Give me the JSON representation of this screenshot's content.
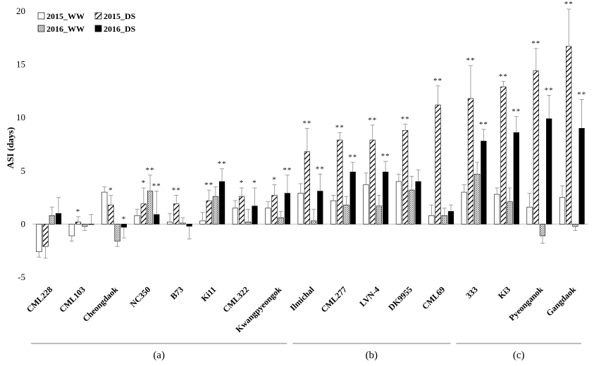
{
  "chart_data": {
    "type": "bar",
    "ylabel": "ASI (days)",
    "ylim": [
      -5,
      20
    ],
    "yticks": [
      -5,
      0,
      5,
      10,
      15,
      20
    ],
    "grid": false,
    "legend_position": "top-left",
    "categories": [
      "CML228",
      "CML103",
      "Cheongdaok",
      "NC350",
      "B73",
      "Ki11",
      "CML322",
      "Kwangpyeongok",
      "Ilmichal",
      "CML277",
      "LVN-4",
      "DK9955",
      "CML69",
      "333",
      "Ki3",
      "Pyeonganok",
      "Gangdaok"
    ],
    "groups": [
      {
        "label": "(a)",
        "from": 0,
        "to": 7
      },
      {
        "label": "(b)",
        "from": 8,
        "to": 12
      },
      {
        "label": "(c)",
        "from": 13,
        "to": 16
      }
    ],
    "series": [
      {
        "name": "2015_WW",
        "pattern": "white",
        "values": [
          -2.6,
          -1.1,
          3.0,
          0.8,
          0.2,
          0.3,
          1.5,
          1.5,
          2.9,
          2.2,
          3.7,
          4.0,
          0.8,
          3.0,
          2.8,
          1.6,
          2.5
        ],
        "errors": [
          0.5,
          0.5,
          0.5,
          0.6,
          0.8,
          0.8,
          0.7,
          0.6,
          0.9,
          0.5,
          1.1,
          0.7,
          1.0,
          0.7,
          0.6,
          1.3,
          1.1
        ],
        "significance": [
          "",
          "",
          "",
          "",
          "",
          "",
          "",
          "",
          "",
          "",
          "",
          "",
          "",
          "",
          "",
          "",
          ""
        ]
      },
      {
        "name": "2015_DS",
        "pattern": "diagonal",
        "values": [
          -2.1,
          0.2,
          1.8,
          1.9,
          1.9,
          2.2,
          2.6,
          2.7,
          6.8,
          7.9,
          7.9,
          8.8,
          11.2,
          11.8,
          12.9,
          14.4,
          16.7
        ],
        "errors": [
          1.1,
          0.5,
          0.9,
          1.5,
          0.8,
          1.0,
          0.8,
          1.0,
          2.2,
          0.7,
          1.4,
          0.6,
          1.8,
          3.1,
          0.5,
          2.1,
          3.5
        ],
        "significance": [
          "",
          "*",
          "*",
          "*",
          "**",
          "**",
          "*",
          "*",
          "**",
          "**",
          "**",
          "**",
          "**",
          "**",
          "**",
          "**",
          "**"
        ]
      },
      {
        "name": "2016_WW",
        "pattern": "dotted",
        "values": [
          0.8,
          -0.2,
          -1.6,
          3.1,
          0.1,
          2.6,
          0.2,
          0.6,
          0.3,
          1.8,
          1.7,
          3.2,
          0.8,
          4.7,
          2.1,
          -1.1,
          -0.2
        ],
        "errors": [
          0.8,
          0.4,
          0.5,
          1.5,
          0.5,
          0.9,
          1.2,
          0.6,
          1.1,
          0.8,
          1.0,
          1.3,
          0.7,
          1.1,
          1.3,
          0.7,
          0.4
        ],
        "significance": [
          "",
          "",
          "",
          "**",
          "",
          "",
          "",
          "",
          "",
          "",
          "",
          "",
          "",
          "",
          "",
          "",
          ""
        ]
      },
      {
        "name": "2016_DS",
        "pattern": "black",
        "values": [
          1.0,
          0.0,
          -0.3,
          0.9,
          -0.2,
          4.0,
          1.7,
          2.9,
          3.1,
          4.9,
          4.9,
          4.0,
          1.2,
          7.8,
          8.6,
          9.9,
          9.0
        ],
        "errors": [
          1.5,
          0.9,
          1.0,
          2.2,
          1.2,
          1.2,
          1.7,
          1.7,
          1.6,
          0.9,
          1.0,
          1.1,
          0.6,
          1.1,
          1.5,
          2.2,
          2.7
        ],
        "significance": [
          "",
          "",
          "*",
          "**",
          "",
          "**",
          "*",
          "**",
          "**",
          "**",
          "**",
          "",
          "",
          "**",
          "**",
          "**",
          "**"
        ]
      }
    ]
  }
}
